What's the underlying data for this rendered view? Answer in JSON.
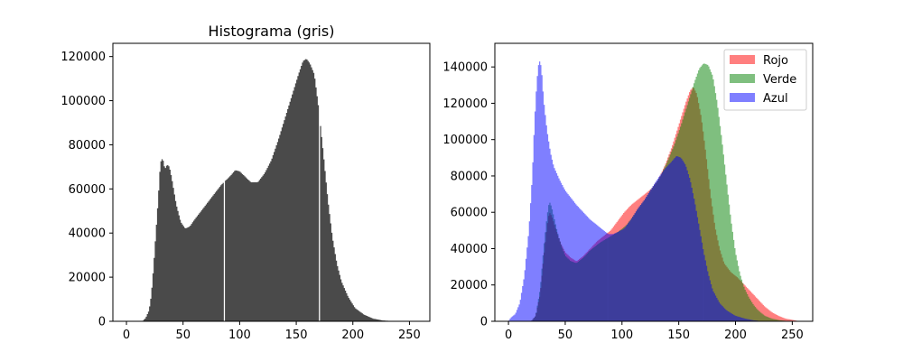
{
  "chart_data": [
    {
      "type": "bar",
      "title": "Histograma (gris)",
      "xlabel": "",
      "ylabel": "",
      "xlim": [
        -12,
        268
      ],
      "ylim": [
        0,
        126000
      ],
      "xticks": [
        0,
        50,
        100,
        150,
        200,
        250
      ],
      "yticks": [
        0,
        20000,
        40000,
        60000,
        80000,
        100000,
        120000
      ],
      "grid": false,
      "bins": 256,
      "series": [
        {
          "color": "#404040",
          "opacity": 0.95,
          "points": [
            [
              0,
              0
            ],
            [
              14,
              0
            ],
            [
              17,
              1500
            ],
            [
              20,
              5000
            ],
            [
              22,
              12000
            ],
            [
              24,
              25000
            ],
            [
              26,
              40000
            ],
            [
              28,
              55000
            ],
            [
              30,
              72000
            ],
            [
              32,
              74000
            ],
            [
              34,
              69000
            ],
            [
              36,
              71000
            ],
            [
              38,
              70000
            ],
            [
              40,
              65000
            ],
            [
              44,
              53000
            ],
            [
              48,
              45000
            ],
            [
              52,
              42000
            ],
            [
              56,
              43000
            ],
            [
              60,
              46000
            ],
            [
              66,
              50000
            ],
            [
              72,
              54000
            ],
            [
              78,
              58000
            ],
            [
              84,
              62000
            ],
            [
              88,
              64000
            ],
            [
              92,
              66000
            ],
            [
              96,
              68500
            ],
            [
              100,
              68000
            ],
            [
              104,
              66000
            ],
            [
              110,
              63000
            ],
            [
              116,
              63000
            ],
            [
              122,
              67000
            ],
            [
              128,
              73000
            ],
            [
              134,
              82000
            ],
            [
              140,
              92000
            ],
            [
              146,
              102000
            ],
            [
              152,
              112000
            ],
            [
              156,
              118000
            ],
            [
              159,
              119000
            ],
            [
              162,
              117000
            ],
            [
              166,
              112000
            ],
            [
              170,
              96000
            ],
            [
              174,
              76000
            ],
            [
              178,
              55000
            ],
            [
              182,
              38000
            ],
            [
              186,
              26000
            ],
            [
              190,
              18000
            ],
            [
              196,
              11000
            ],
            [
              202,
              6000
            ],
            [
              210,
              3000
            ],
            [
              218,
              1200
            ],
            [
              226,
              400
            ],
            [
              234,
              100
            ],
            [
              240,
              0
            ],
            [
              255,
              0
            ]
          ],
          "gaps": [
            86,
            170
          ]
        }
      ]
    },
    {
      "type": "bar",
      "title": "",
      "xlabel": "",
      "ylabel": "",
      "xlim": [
        -12,
        268
      ],
      "ylim": [
        0,
        153000
      ],
      "xticks": [
        0,
        50,
        100,
        150,
        200,
        250
      ],
      "yticks": [
        0,
        20000,
        40000,
        60000,
        80000,
        100000,
        120000,
        140000
      ],
      "grid": false,
      "bins": 256,
      "legend": "top-right",
      "series": [
        {
          "name": "Rojo",
          "color": "#ff0000",
          "opacity": 0.5,
          "points": [
            [
              0,
              0
            ],
            [
              20,
              0
            ],
            [
              24,
              3000
            ],
            [
              28,
              15000
            ],
            [
              31,
              35000
            ],
            [
              34,
              52000
            ],
            [
              36,
              60000
            ],
            [
              38,
              58000
            ],
            [
              42,
              50000
            ],
            [
              46,
              43000
            ],
            [
              50,
              38000
            ],
            [
              55,
              35000
            ],
            [
              60,
              33000
            ],
            [
              66,
              36000
            ],
            [
              72,
              40000
            ],
            [
              78,
              44000
            ],
            [
              84,
              47000
            ],
            [
              90,
              50000
            ],
            [
              96,
              55000
            ],
            [
              102,
              60000
            ],
            [
              108,
              64000
            ],
            [
              114,
              67000
            ],
            [
              120,
              70000
            ],
            [
              126,
              73000
            ],
            [
              132,
              78000
            ],
            [
              138,
              86000
            ],
            [
              144,
              96000
            ],
            [
              150,
              108000
            ],
            [
              156,
              120000
            ],
            [
              160,
              127000
            ],
            [
              163,
              129000
            ],
            [
              166,
              125000
            ],
            [
              170,
              112000
            ],
            [
              174,
              92000
            ],
            [
              178,
              70000
            ],
            [
              182,
              52000
            ],
            [
              186,
              40000
            ],
            [
              190,
              32000
            ],
            [
              196,
              27000
            ],
            [
              202,
              24000
            ],
            [
              208,
              20000
            ],
            [
              214,
              16000
            ],
            [
              220,
              12000
            ],
            [
              226,
              8000
            ],
            [
              232,
              5000
            ],
            [
              238,
              3000
            ],
            [
              244,
              1500
            ],
            [
              250,
              800
            ],
            [
              254,
              300
            ],
            [
              255,
              0
            ]
          ]
        },
        {
          "name": "Verde",
          "color": "#008000",
          "opacity": 0.5,
          "points": [
            [
              0,
              0
            ],
            [
              20,
              0
            ],
            [
              24,
              3000
            ],
            [
              28,
              18000
            ],
            [
              31,
              40000
            ],
            [
              34,
              58000
            ],
            [
              36,
              66000
            ],
            [
              38,
              63000
            ],
            [
              42,
              52000
            ],
            [
              46,
              42000
            ],
            [
              50,
              36000
            ],
            [
              55,
              33000
            ],
            [
              60,
              32000
            ],
            [
              66,
              35000
            ],
            [
              72,
              39000
            ],
            [
              80,
              43000
            ],
            [
              88,
              46000
            ],
            [
              96,
              49000
            ],
            [
              104,
              53000
            ],
            [
              110,
              58000
            ],
            [
              116,
              63000
            ],
            [
              122,
              68000
            ],
            [
              128,
              73000
            ],
            [
              134,
              80000
            ],
            [
              140,
              88000
            ],
            [
              146,
              97000
            ],
            [
              152,
              108000
            ],
            [
              158,
              120000
            ],
            [
              164,
              132000
            ],
            [
              168,
              139000
            ],
            [
              172,
              142000
            ],
            [
              176,
              141000
            ],
            [
              180,
              135000
            ],
            [
              184,
              120000
            ],
            [
              188,
              100000
            ],
            [
              192,
              78000
            ],
            [
              196,
              56000
            ],
            [
              200,
              38000
            ],
            [
              204,
              26000
            ],
            [
              208,
              18000
            ],
            [
              212,
              13000
            ],
            [
              216,
              9000
            ],
            [
              220,
              6000
            ],
            [
              226,
              3000
            ],
            [
              232,
              1500
            ],
            [
              240,
              500
            ],
            [
              248,
              100
            ],
            [
              255,
              0
            ]
          ]
        },
        {
          "name": "Azul",
          "color": "#0000ff",
          "opacity": 0.5,
          "points": [
            [
              0,
              0
            ],
            [
              2,
              2000
            ],
            [
              6,
              4000
            ],
            [
              10,
              10000
            ],
            [
              14,
              25000
            ],
            [
              18,
              50000
            ],
            [
              21,
              80000
            ],
            [
              23,
              110000
            ],
            [
              25,
              132000
            ],
            [
              27,
              144000
            ],
            [
              29,
              140000
            ],
            [
              31,
              122000
            ],
            [
              34,
              105000
            ],
            [
              37,
              93000
            ],
            [
              40,
              85000
            ],
            [
              45,
              78000
            ],
            [
              50,
              72000
            ],
            [
              55,
              68000
            ],
            [
              60,
              64000
            ],
            [
              66,
              60000
            ],
            [
              72,
              56000
            ],
            [
              78,
              53000
            ],
            [
              84,
              50000
            ],
            [
              88,
              48000
            ],
            [
              92,
              48000
            ],
            [
              96,
              49000
            ],
            [
              102,
              51000
            ],
            [
              108,
              56000
            ],
            [
              114,
              62000
            ],
            [
              120,
              67000
            ],
            [
              126,
              73000
            ],
            [
              132,
              79000
            ],
            [
              138,
              84000
            ],
            [
              144,
              88000
            ],
            [
              148,
              91000
            ],
            [
              152,
              90000
            ],
            [
              156,
              86000
            ],
            [
              160,
              78000
            ],
            [
              164,
              66000
            ],
            [
              168,
              52000
            ],
            [
              172,
              38000
            ],
            [
              176,
              26000
            ],
            [
              180,
              17000
            ],
            [
              186,
              10000
            ],
            [
              192,
              6000
            ],
            [
              200,
              3000
            ],
            [
              208,
              1500
            ],
            [
              216,
              500
            ],
            [
              224,
              0
            ],
            [
              255,
              0
            ]
          ]
        }
      ],
      "overlap": {
        "color": "#3d3d9a",
        "opacity": 0.9,
        "points": [
          [
            0,
            0
          ],
          [
            20,
            0
          ],
          [
            24,
            3000
          ],
          [
            28,
            15000
          ],
          [
            31,
            35000
          ],
          [
            34,
            52000
          ],
          [
            36,
            60000
          ],
          [
            38,
            58000
          ],
          [
            42,
            50000
          ],
          [
            46,
            43000
          ],
          [
            50,
            36000
          ],
          [
            55,
            33000
          ],
          [
            60,
            32000
          ],
          [
            66,
            35000
          ],
          [
            72,
            39000
          ],
          [
            80,
            43000
          ],
          [
            88,
            46000
          ],
          [
            96,
            49000
          ],
          [
            102,
            51000
          ],
          [
            108,
            56000
          ],
          [
            114,
            62000
          ],
          [
            120,
            67000
          ],
          [
            126,
            73000
          ],
          [
            132,
            78000
          ],
          [
            138,
            84000
          ],
          [
            144,
            88000
          ],
          [
            148,
            91000
          ],
          [
            152,
            90000
          ],
          [
            156,
            86000
          ],
          [
            160,
            78000
          ],
          [
            164,
            66000
          ],
          [
            168,
            52000
          ],
          [
            172,
            38000
          ],
          [
            176,
            26000
          ],
          [
            180,
            17000
          ],
          [
            186,
            10000
          ],
          [
            192,
            6000
          ],
          [
            200,
            3000
          ],
          [
            208,
            1500
          ],
          [
            216,
            500
          ],
          [
            224,
            0
          ],
          [
            255,
            0
          ]
        ],
        "gaps": [
          87,
          171
        ]
      }
    }
  ]
}
